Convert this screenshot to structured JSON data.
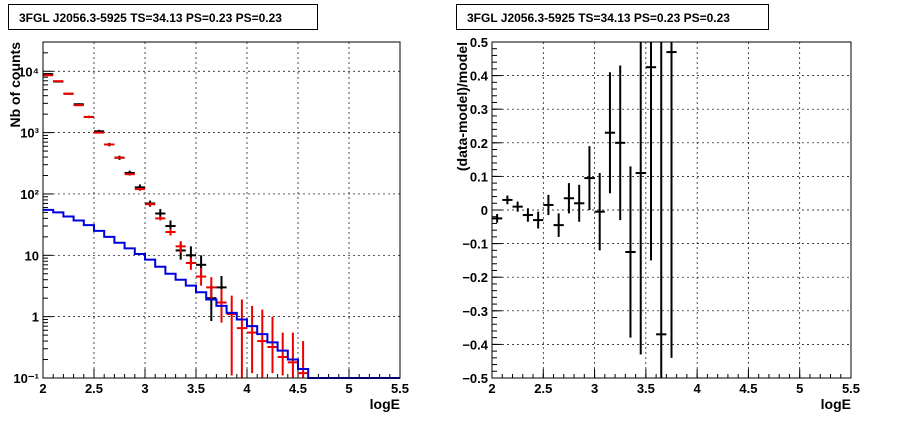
{
  "chart_data": [
    {
      "type": "histogram",
      "title": "3FGL J2056.3-5925 TS=34.13 PS=0.23 PS=0.23",
      "xlabel": "logE",
      "ylabel": "Nb of counts",
      "xlim": [
        2,
        5.5
      ],
      "ylim": [
        0.1,
        30000
      ],
      "yscale": "log",
      "grid": true,
      "xticks": [
        "2",
        "2.5",
        "3",
        "3.5",
        "4",
        "4.5",
        "5",
        "5.5"
      ],
      "yticks": [
        {
          "v": 0.1,
          "label": "10⁻¹"
        },
        {
          "v": 1,
          "label": "1"
        },
        {
          "v": 10,
          "label": "10"
        },
        {
          "v": 100,
          "label": "10²"
        },
        {
          "v": 1000,
          "label": "10³"
        },
        {
          "v": 10000,
          "label": "10⁴"
        }
      ],
      "series": [
        {
          "color": "#000000",
          "style": "errorbar",
          "points": [
            {
              "x": 2.05,
              "y": 9000,
              "lo": 8800,
              "hi": 9200
            },
            {
              "x": 2.15,
              "y": 6800,
              "lo": 6650,
              "hi": 6950
            },
            {
              "x": 2.25,
              "y": 4300,
              "lo": 4180,
              "hi": 4420
            },
            {
              "x": 2.35,
              "y": 2900,
              "lo": 2800,
              "hi": 3000
            },
            {
              "x": 2.45,
              "y": 1800,
              "lo": 1720,
              "hi": 1880
            },
            {
              "x": 2.55,
              "y": 1050,
              "lo": 990,
              "hi": 1110
            },
            {
              "x": 2.65,
              "y": 640,
              "lo": 600,
              "hi": 680
            },
            {
              "x": 2.75,
              "y": 390,
              "lo": 360,
              "hi": 420
            },
            {
              "x": 2.85,
              "y": 220,
              "lo": 200,
              "hi": 240
            },
            {
              "x": 2.95,
              "y": 128,
              "lo": 113,
              "hi": 143
            },
            {
              "x": 3.05,
              "y": 70,
              "lo": 62,
              "hi": 78
            },
            {
              "x": 3.15,
              "y": 48,
              "lo": 40,
              "hi": 57
            },
            {
              "x": 3.25,
              "y": 30,
              "lo": 24,
              "hi": 37
            },
            {
              "x": 3.35,
              "y": 12,
              "lo": 8.5,
              "hi": 16
            },
            {
              "x": 3.45,
              "y": 10,
              "lo": 7,
              "hi": 14
            },
            {
              "x": 3.55,
              "y": 7,
              "lo": 4.5,
              "hi": 10
            },
            {
              "x": 3.65,
              "y": 2,
              "lo": 0.85,
              "hi": 3.3
            },
            {
              "x": 3.75,
              "y": 3,
              "lo": 1.6,
              "hi": 4.6
            }
          ]
        },
        {
          "color": "#ee0000",
          "style": "errorbar",
          "points": [
            {
              "x": 2.05,
              "y": 8600,
              "lo": 8500,
              "hi": 8700
            },
            {
              "x": 2.15,
              "y": 6900,
              "lo": 6800,
              "hi": 7000
            },
            {
              "x": 2.25,
              "y": 4300,
              "lo": 4250,
              "hi": 4350
            },
            {
              "x": 2.35,
              "y": 2800,
              "lo": 2750,
              "hi": 2850
            },
            {
              "x": 2.45,
              "y": 1800,
              "lo": 1770,
              "hi": 1830
            },
            {
              "x": 2.55,
              "y": 1000,
              "lo": 980,
              "hi": 1020
            },
            {
              "x": 2.65,
              "y": 640,
              "lo": 625,
              "hi": 655
            },
            {
              "x": 2.75,
              "y": 390,
              "lo": 380,
              "hi": 400
            },
            {
              "x": 2.85,
              "y": 210,
              "lo": 205,
              "hi": 215
            },
            {
              "x": 2.95,
              "y": 120,
              "lo": 115,
              "hi": 126
            },
            {
              "x": 3.05,
              "y": 68,
              "lo": 64,
              "hi": 72
            },
            {
              "x": 3.15,
              "y": 40,
              "lo": 37,
              "hi": 43
            },
            {
              "x": 3.25,
              "y": 24,
              "lo": 21,
              "hi": 27
            },
            {
              "x": 3.35,
              "y": 14,
              "lo": 11,
              "hi": 17
            },
            {
              "x": 3.45,
              "y": 7.5,
              "lo": 5.8,
              "hi": 9.2
            },
            {
              "x": 3.55,
              "y": 4.5,
              "lo": 3.2,
              "hi": 6.2
            },
            {
              "x": 3.65,
              "y": 3,
              "lo": 1.9,
              "hi": 4.4
            },
            {
              "x": 3.75,
              "y": 1.7,
              "lo": 0.8,
              "hi": 2.8
            },
            {
              "x": 3.85,
              "y": 1.1,
              "lo": 0.11,
              "hi": 2.2
            },
            {
              "x": 3.95,
              "y": 0.65,
              "lo": 0.1,
              "hi": 1.9
            },
            {
              "x": 4.05,
              "y": 0.55,
              "lo": 0.12,
              "hi": 1.5
            },
            {
              "x": 4.15,
              "y": 0.4,
              "lo": 0.1,
              "hi": 1.3
            },
            {
              "x": 4.25,
              "y": 0.32,
              "lo": 0.12,
              "hi": 1.0
            },
            {
              "x": 4.35,
              "y": 0.22,
              "lo": 0.11,
              "hi": 0.55
            },
            {
              "x": 4.45,
              "y": 0.18,
              "lo": 0.1,
              "hi": 0.55
            },
            {
              "x": 4.55,
              "y": 0.12,
              "lo": 0.1,
              "hi": 0.4
            }
          ]
        },
        {
          "color": "#0000dd",
          "style": "step",
          "bins": [
            2.0,
            2.1,
            2.2,
            2.3,
            2.4,
            2.5,
            2.6,
            2.7,
            2.8,
            2.9,
            3.0,
            3.1,
            3.2,
            3.3,
            3.4,
            3.5,
            3.6,
            3.7,
            3.8,
            3.9,
            4.0,
            4.1,
            4.2,
            4.3,
            4.4,
            4.5,
            4.6,
            5.5
          ],
          "values": [
            55,
            50,
            43,
            37,
            31,
            25,
            20,
            16,
            13,
            10.5,
            8.5,
            6.5,
            5,
            4,
            3.2,
            2.5,
            1.9,
            1.5,
            1.15,
            0.9,
            0.7,
            0.52,
            0.38,
            0.28,
            0.2,
            0.14,
            0.1
          ]
        }
      ]
    },
    {
      "type": "errorbar",
      "title": "3FGL J2056.3-5925 TS=34.13 PS=0.23 PS=0.23",
      "xlabel": "logE",
      "ylabel": "(data-model)/model",
      "xlim": [
        2,
        5.5
      ],
      "ylim": [
        -0.5,
        0.5
      ],
      "grid": true,
      "xticks": [
        "2",
        "2.5",
        "3",
        "3.5",
        "4",
        "4.5",
        "5",
        "5.5"
      ],
      "yticks": [
        "−0.5",
        "−0.4",
        "−0.3",
        "−0.2",
        "−0.1",
        "0",
        "0.1",
        "0.2",
        "0.3",
        "0.4",
        "0.5"
      ],
      "series": [
        {
          "color": "#000000",
          "points": [
            {
              "x": 2.05,
              "y": -0.025,
              "lo": -0.038,
              "hi": -0.012
            },
            {
              "x": 2.15,
              "y": 0.03,
              "lo": 0.017,
              "hi": 0.043
            },
            {
              "x": 2.25,
              "y": 0.01,
              "lo": -0.005,
              "hi": 0.025
            },
            {
              "x": 2.35,
              "y": -0.015,
              "lo": -0.035,
              "hi": 0.005
            },
            {
              "x": 2.45,
              "y": -0.03,
              "lo": -0.055,
              "hi": -0.005
            },
            {
              "x": 2.55,
              "y": 0.015,
              "lo": -0.015,
              "hi": 0.045
            },
            {
              "x": 2.65,
              "y": -0.045,
              "lo": -0.08,
              "hi": -0.01
            },
            {
              "x": 2.75,
              "y": 0.035,
              "lo": -0.01,
              "hi": 0.08
            },
            {
              "x": 2.85,
              "y": 0.02,
              "lo": -0.035,
              "hi": 0.075
            },
            {
              "x": 2.95,
              "y": 0.095,
              "lo": 0.0,
              "hi": 0.19
            },
            {
              "x": 3.05,
              "y": -0.005,
              "lo": -0.12,
              "hi": 0.11
            },
            {
              "x": 3.15,
              "y": 0.23,
              "lo": 0.05,
              "hi": 0.41
            },
            {
              "x": 3.25,
              "y": 0.2,
              "lo": -0.03,
              "hi": 0.43
            },
            {
              "x": 3.35,
              "y": -0.125,
              "lo": -0.38,
              "hi": 0.13
            },
            {
              "x": 3.45,
              "y": 0.11,
              "lo": -0.43,
              "hi": 0.5
            },
            {
              "x": 3.55,
              "y": 0.425,
              "lo": -0.15,
              "hi": 0.5
            },
            {
              "x": 3.65,
              "y": -0.37,
              "lo": -0.5,
              "hi": 0.5
            },
            {
              "x": 3.75,
              "y": 0.47,
              "lo": -0.44,
              "hi": 0.5
            }
          ]
        }
      ]
    }
  ]
}
